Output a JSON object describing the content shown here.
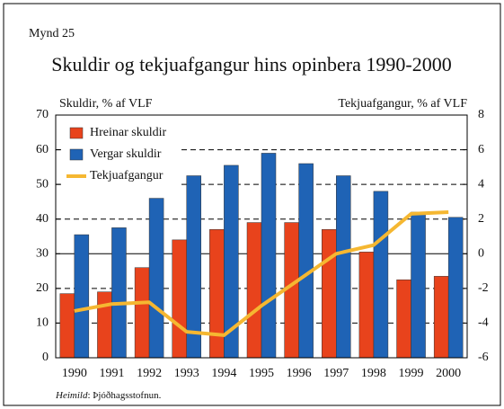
{
  "figure_label": "Mynd 25",
  "chart_data": {
    "type": "bar",
    "title": "Skuldir og tekjuafgangur hins opinbera 1990-2000",
    "y_label": "Skuldir, % af VLF",
    "y2_label": "Tekjuafgangur, % af VLF",
    "categories": [
      "1990",
      "1991",
      "1992",
      "1993",
      "1994",
      "1995",
      "1996",
      "1997",
      "1998",
      "1999",
      "2000"
    ],
    "series": [
      {
        "name": "Hreinar skuldir",
        "color": "#e8431c",
        "type": "bar",
        "values": [
          18.5,
          19,
          26,
          34,
          37,
          39,
          39,
          37,
          30.5,
          22.5,
          23.5
        ]
      },
      {
        "name": "Vergar skuldir",
        "color": "#1f63b5",
        "type": "bar",
        "values": [
          35.5,
          37.5,
          46,
          52.5,
          55.5,
          59,
          56,
          52.5,
          48,
          42,
          40.5
        ]
      },
      {
        "name": "Tekjuafgangur",
        "color": "#f5b731",
        "type": "line",
        "axis": "y2",
        "values": [
          -3.3,
          -2.9,
          -2.8,
          -4.5,
          -4.7,
          -3.0,
          -1.5,
          0,
          0.5,
          2.3,
          2.4
        ]
      }
    ],
    "ylim": [
      0,
      70
    ],
    "yticks": [
      0,
      10,
      20,
      30,
      40,
      50,
      60,
      70
    ],
    "y2lim": [
      -6,
      8
    ],
    "y2ticks": [
      -6,
      -4,
      -2,
      0,
      2,
      4,
      6,
      8
    ],
    "grid": true,
    "legend": "upper left"
  },
  "source": {
    "label": "Heimild",
    "text": ": Þjóðhagsstofnun."
  }
}
